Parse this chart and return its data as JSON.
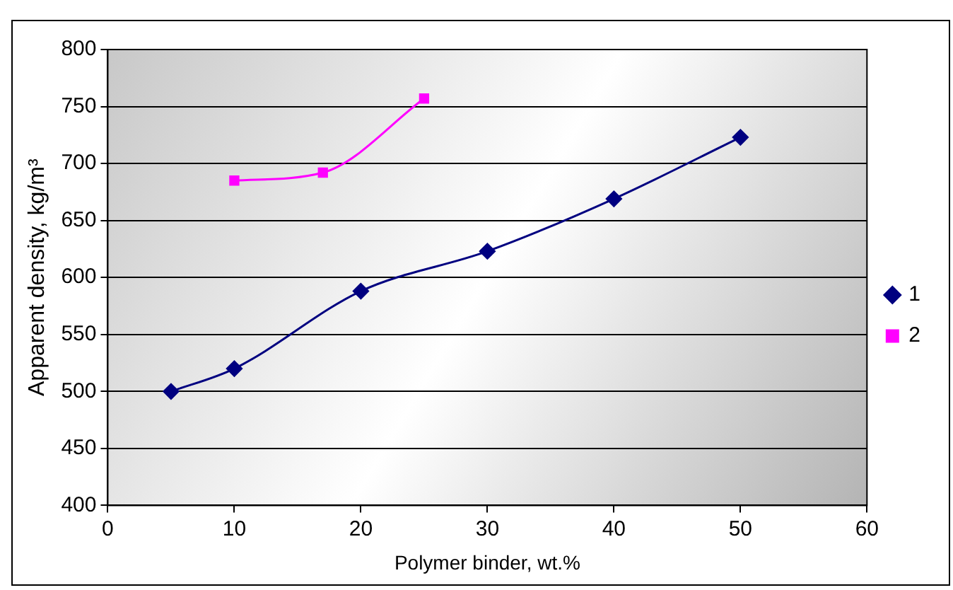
{
  "chart_data": {
    "type": "line",
    "xlabel": "Polymer binder, wt.%",
    "ylabel": "Apparent density, kg/m³",
    "xlim": [
      0,
      60
    ],
    "xticks": [
      0,
      10,
      20,
      30,
      40,
      50,
      60
    ],
    "ylim": [
      400,
      800
    ],
    "yticks": [
      400,
      450,
      500,
      550,
      600,
      650,
      700,
      750,
      800
    ],
    "grid": "y",
    "legend": "right",
    "line_style": "solid",
    "series": [
      {
        "name": "1",
        "color": "#000080",
        "marker": "diamond",
        "x": [
          5,
          10,
          20,
          30,
          40,
          50
        ],
        "values": [
          500,
          520,
          588,
          623,
          669,
          723
        ]
      },
      {
        "name": "2",
        "color": "#ff00ff",
        "marker": "square",
        "x": [
          10,
          17,
          25
        ],
        "values": [
          685,
          692,
          757
        ]
      }
    ]
  }
}
